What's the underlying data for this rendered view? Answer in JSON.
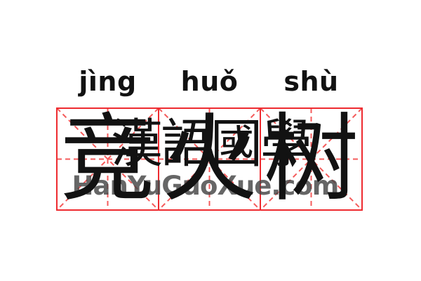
{
  "card": {
    "description": "Chinese word card with pinyin, tianzige practice grids and watermark"
  },
  "pinyin": {
    "syllables": [
      "jìng",
      "huǒ",
      "shù"
    ]
  },
  "characters": [
    "竞",
    "火",
    "树"
  ],
  "watermark": {
    "cjk": "漢語國學",
    "url": "HanYuGuoXue.com"
  },
  "grid": {
    "boxes": 3,
    "box_size": 145,
    "stroke_width": 2,
    "dash_pattern": "7,5"
  },
  "colors": {
    "background": "#ffffff",
    "grid_border": "#ee2b30",
    "grid_guides": "#f45b5b",
    "ink": "#121212",
    "watermark_gray": "#454545"
  }
}
